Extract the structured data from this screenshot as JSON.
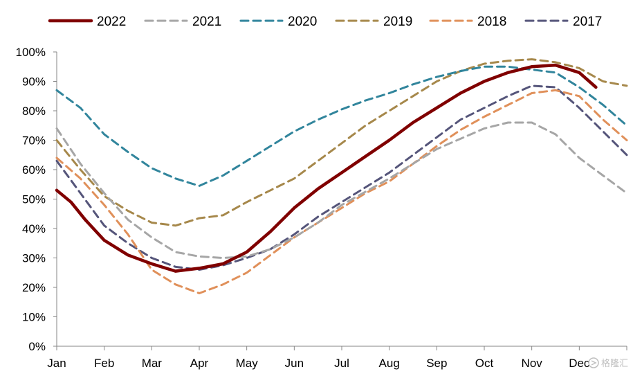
{
  "chart_data": {
    "type": "line",
    "title": "",
    "xlabel": "",
    "ylabel": "",
    "x_ticks": [
      "Jan",
      "Feb",
      "Mar",
      "Apr",
      "May",
      "Jun",
      "Jul",
      "Aug",
      "Sep",
      "Oct",
      "Nov",
      "Dec"
    ],
    "ylim": [
      0,
      100
    ],
    "y_ticks": [
      "0%",
      "10%",
      "20%",
      "30%",
      "40%",
      "50%",
      "60%",
      "70%",
      "80%",
      "90%",
      "100%"
    ],
    "grid": false,
    "legend_position": "top",
    "series": [
      {
        "name": "2022",
        "color": "#800000",
        "dash": "solid",
        "x": [
          0,
          0.3,
          0.6,
          1,
          1.5,
          2,
          2.5,
          3,
          3.5,
          4,
          4.5,
          5,
          5.5,
          6,
          6.5,
          7,
          7.5,
          8,
          8.5,
          9,
          9.5,
          10,
          10.5,
          11,
          11.35
        ],
        "values": [
          53,
          49,
          43,
          36,
          31,
          28,
          25.5,
          26.5,
          28,
          32,
          39,
          47,
          53.5,
          59,
          64.5,
          70,
          76,
          81,
          86,
          90,
          93,
          95,
          95.5,
          93,
          88
        ]
      },
      {
        "name": "2021",
        "color": "#a6a6a6",
        "dash": "dashed",
        "x": [
          0,
          0.5,
          1,
          1.5,
          2,
          2.5,
          3,
          3.5,
          4,
          4.5,
          5,
          5.5,
          6,
          6.5,
          7,
          7.5,
          8,
          8.5,
          9,
          9.5,
          10,
          10.5,
          11,
          11.5,
          12
        ],
        "values": [
          74,
          62,
          52,
          43,
          37,
          32,
          30.5,
          30,
          30.5,
          33,
          37,
          42,
          48,
          52.5,
          57,
          62,
          67,
          70.5,
          74,
          76,
          76,
          72,
          64,
          58,
          52
        ]
      },
      {
        "name": "2020",
        "color": "#31859c",
        "dash": "dashed",
        "x": [
          0,
          0.5,
          1,
          1.5,
          2,
          2.5,
          3,
          3.5,
          4,
          4.5,
          5,
          5.5,
          6,
          6.5,
          7,
          7.5,
          8,
          8.5,
          9,
          9.5,
          10,
          10.5,
          11,
          11.5,
          12
        ],
        "values": [
          87,
          81,
          72,
          66,
          60.5,
          57,
          54.5,
          58,
          63,
          68,
          73,
          77,
          80.5,
          83.5,
          86,
          89,
          91.5,
          93.5,
          95,
          95,
          94,
          93,
          88,
          82,
          75
        ]
      },
      {
        "name": "2019",
        "color": "#a6884b",
        "dash": "dashed",
        "x": [
          0,
          0.5,
          1,
          1.5,
          2,
          2.5,
          3,
          3.5,
          4,
          4.5,
          5,
          5.5,
          6,
          6.5,
          7,
          7.5,
          8,
          8.5,
          9,
          9.5,
          10,
          10.5,
          11,
          11.5,
          12
        ],
        "values": [
          70,
          60,
          51,
          46,
          42,
          41,
          43.5,
          44.5,
          49,
          53,
          57,
          63,
          69,
          75,
          80,
          85,
          90,
          93.5,
          96,
          97,
          97.5,
          96.5,
          94.5,
          90,
          88.5
        ]
      },
      {
        "name": "2018",
        "color": "#e0905a",
        "dash": "dashed",
        "x": [
          0,
          0.5,
          1,
          1.5,
          2,
          2.5,
          3,
          3.5,
          4,
          4.5,
          5,
          5.5,
          6,
          6.5,
          7,
          7.5,
          8,
          8.5,
          9,
          9.5,
          10,
          10.5,
          11,
          11.5,
          12
        ],
        "values": [
          64,
          57,
          48,
          38,
          26,
          21,
          18,
          21,
          25,
          31,
          37,
          42,
          47,
          52,
          56,
          62,
          68,
          73.5,
          78,
          82,
          86,
          87,
          85,
          77,
          70
        ]
      },
      {
        "name": "2017",
        "color": "#55557a",
        "dash": "dashed",
        "x": [
          0,
          0.5,
          1,
          1.5,
          2,
          2.5,
          3,
          3.5,
          4,
          4.5,
          5,
          5.5,
          6,
          6.5,
          7,
          7.5,
          8,
          8.5,
          9,
          9.5,
          10,
          10.5,
          11,
          11.5,
          12
        ],
        "values": [
          63,
          52,
          41,
          35,
          30,
          27,
          26,
          27.5,
          30,
          33,
          38,
          44,
          49,
          54,
          59,
          65,
          71,
          77,
          81,
          85,
          88.5,
          88,
          81,
          73,
          65
        ]
      }
    ]
  },
  "watermark": {
    "icon": "brand-logo-icon",
    "text": "格隆汇"
  }
}
